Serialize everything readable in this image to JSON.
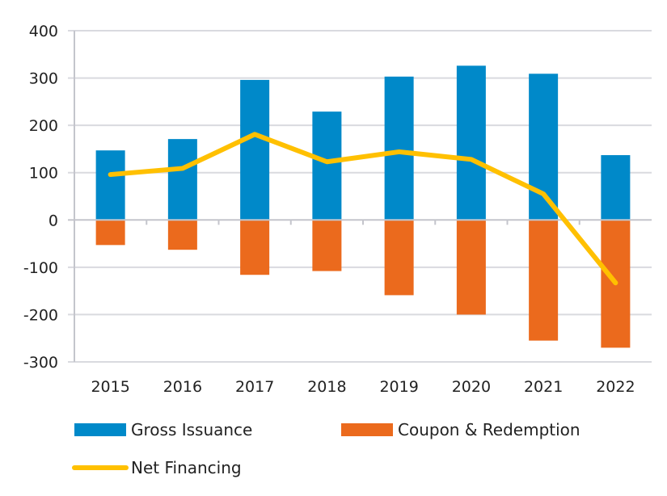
{
  "chart_data": {
    "type": "bar",
    "categories": [
      "2015",
      "2016",
      "2017",
      "2018",
      "2019",
      "2020",
      "2021",
      "2022"
    ],
    "ylim": [
      -300,
      400
    ],
    "yticks": [
      400,
      300,
      200,
      100,
      0,
      -100,
      -200,
      -300
    ],
    "grid": true,
    "legend_position": "bottom",
    "series": [
      {
        "name": "Gross Issuance",
        "kind": "bar",
        "color": "#0089C9",
        "values": [
          147,
          171,
          296,
          229,
          303,
          326,
          309,
          137
        ]
      },
      {
        "name": "Coupon & Redemption",
        "kind": "bar",
        "color": "#EB6A1D",
        "values": [
          -53,
          -63,
          -116,
          -108,
          -159,
          -200,
          -255,
          -270
        ]
      },
      {
        "name": "Net Financing",
        "kind": "line",
        "color": "#FFC000",
        "values": [
          96,
          109,
          181,
          123,
          144,
          128,
          55,
          -133
        ]
      }
    ]
  }
}
